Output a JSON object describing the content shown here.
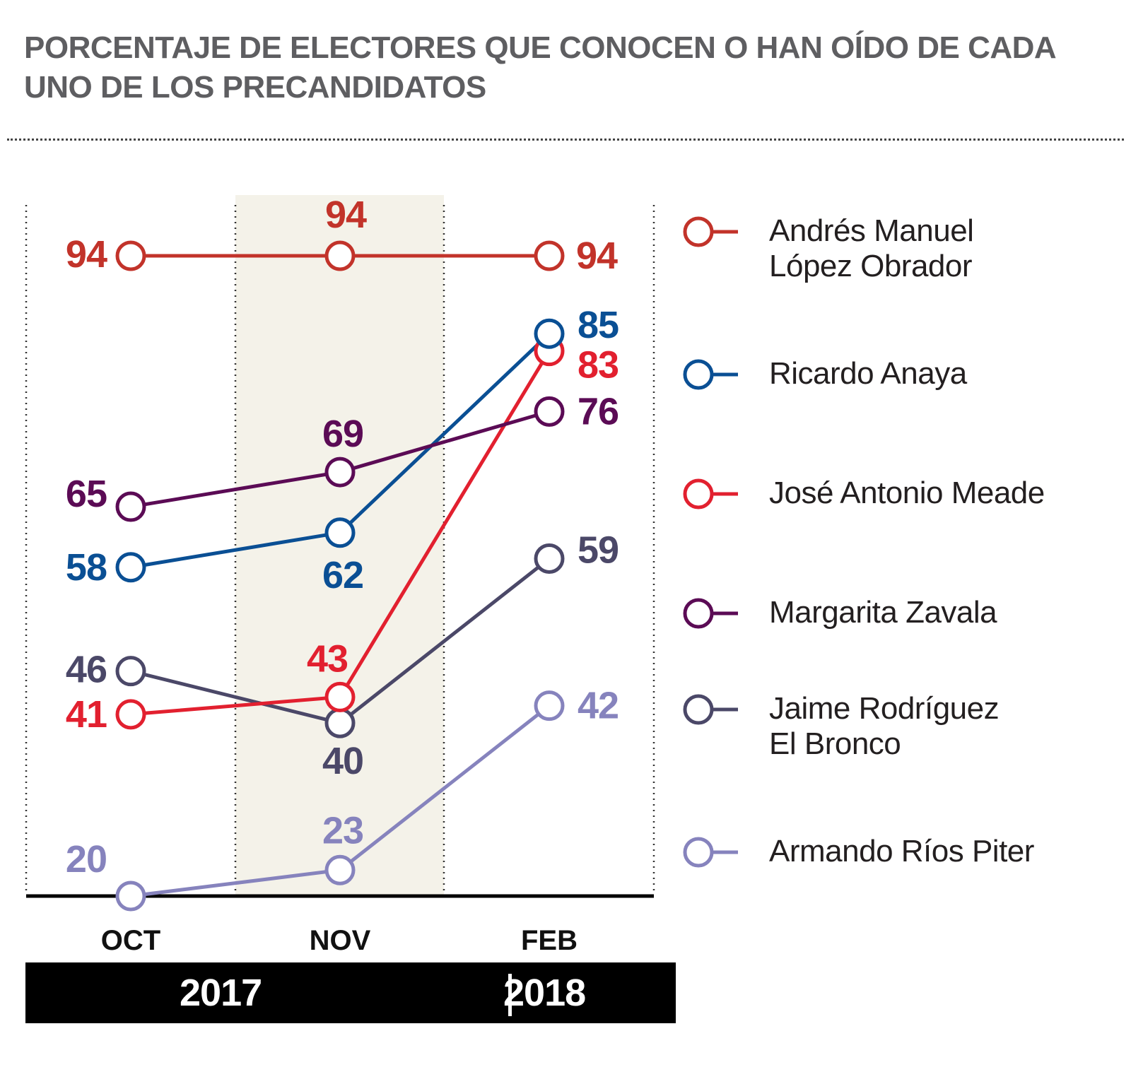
{
  "title": "PORCENTAJE DE ELECTORES QUE CONOCEN O HAN OÍDO DE CADA UNO DE LOS PRECANDIDATOS",
  "years": {
    "y2017": "2017",
    "y2018": "2018"
  },
  "legend": [
    {
      "label_line1": "Andrés Manuel",
      "label_line2": "López Obrador",
      "color": "#c2332a"
    },
    {
      "label_line1": "Ricardo Anaya",
      "label_line2": "",
      "color": "#0a4f94"
    },
    {
      "label_line1": "José Antonio Meade",
      "label_line2": "",
      "color": "#e2202f"
    },
    {
      "label_line1": "Margarita Zavala",
      "label_line2": "",
      "color": "#5b0b55"
    },
    {
      "label_line1": "Jaime Rodríguez",
      "label_line2": "El Bronco",
      "color": "#4b4868"
    },
    {
      "label_line1": "Armando Ríos Piter",
      "label_line2": "",
      "color": "#8683bd"
    }
  ],
  "chart_data": {
    "type": "line",
    "title": "PORCENTAJE DE ELECTORES QUE CONOCEN O HAN OÍDO DE CADA UNO DE LOS PRECANDIDATOS",
    "categories": [
      "OCT",
      "NOV",
      "FEB"
    ],
    "ylim": [
      20,
      100
    ],
    "highlight_category": "NOV",
    "series": [
      {
        "name": "Andrés Manuel López Obrador",
        "color": "#c2332a",
        "values": [
          94,
          94,
          94
        ]
      },
      {
        "name": "Ricardo Anaya",
        "color": "#0a4f94",
        "values": [
          58,
          62,
          85
        ]
      },
      {
        "name": "José Antonio Meade",
        "color": "#e2202f",
        "values": [
          41,
          43,
          83
        ]
      },
      {
        "name": "Margarita Zavala",
        "color": "#5b0b55",
        "values": [
          65,
          69,
          76
        ]
      },
      {
        "name": "Jaime Rodríguez El Bronco",
        "color": "#4b4868",
        "values": [
          46,
          40,
          59
        ]
      },
      {
        "name": "Armando Ríos Piter",
        "color": "#8683bd",
        "values": [
          20,
          23,
          42
        ]
      }
    ]
  }
}
